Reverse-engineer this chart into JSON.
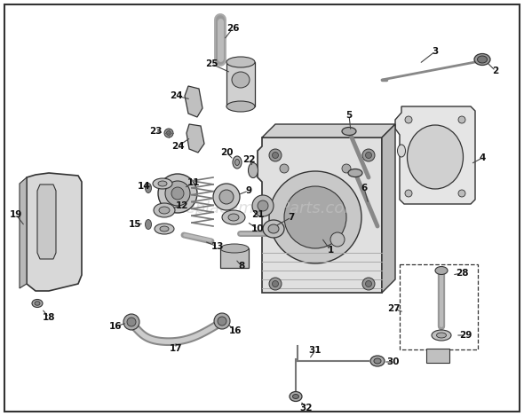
{
  "bg_color": "#ffffff",
  "border_color": "#000000",
  "line_color": "#333333",
  "part_color": "#888888",
  "light_color": "#cccccc",
  "dark_color": "#555555",
  "watermark": "eReplacementParts.com",
  "watermark_color": "#c8c8c8",
  "fig_width": 5.9,
  "fig_height": 4.69,
  "dpi": 100
}
